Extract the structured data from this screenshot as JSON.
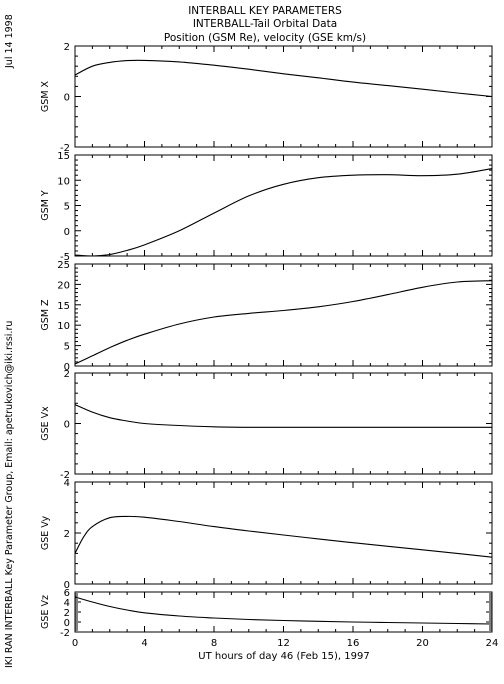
{
  "header": {
    "title": "INTERBALL KEY PARAMETERS",
    "subtitle": "INTERBALL-Tail Orbital Data",
    "units": "Position (GSM Re), velocity (GSE km/s)"
  },
  "side_text": {
    "date": "Jul 14 1998",
    "credit": "IKI RAN INTERBALL Key Parameter Group, Email: apetrukovich@iki.rssi.ru"
  },
  "chart_data": {
    "type": "line",
    "xlabel": "UT hours of day  46 (Feb 15), 1997",
    "xlim": [
      0,
      24
    ],
    "xticks": [
      "0",
      "4",
      "8",
      "12",
      "16",
      "20",
      "24"
    ],
    "panels": [
      {
        "name": "GSM X",
        "ylim": [
          -2,
          2
        ],
        "yticks": [
          "-2",
          "0",
          "2"
        ],
        "x": [
          0,
          1,
          2,
          3,
          4,
          6,
          8,
          10,
          12,
          14,
          16,
          18,
          20,
          22,
          24
        ],
        "y": [
          0.85,
          1.2,
          1.35,
          1.42,
          1.43,
          1.37,
          1.24,
          1.08,
          0.9,
          0.74,
          0.57,
          0.43,
          0.29,
          0.14,
          0.0
        ]
      },
      {
        "name": "GSM Y",
        "ylim": [
          -5,
          15
        ],
        "yticks": [
          "-5",
          "0",
          "5",
          "10",
          "15"
        ],
        "x": [
          0,
          1,
          2,
          3,
          4,
          6,
          8,
          10,
          12,
          14,
          16,
          18,
          20,
          22,
          24
        ],
        "y": [
          -4.8,
          -5.0,
          -4.7,
          -3.9,
          -2.8,
          0.0,
          3.5,
          6.9,
          9.2,
          10.5,
          11.0,
          11.1,
          10.9,
          11.2,
          12.3
        ]
      },
      {
        "name": "GSM Z",
        "ylim": [
          0,
          25
        ],
        "yticks": [
          "0",
          "5",
          "10",
          "15",
          "20",
          "25"
        ],
        "x": [
          0,
          1,
          2,
          3,
          4,
          6,
          8,
          10,
          12,
          14,
          16,
          18,
          20,
          22,
          24
        ],
        "y": [
          0.5,
          2.5,
          4.5,
          6.3,
          7.8,
          10.3,
          12.0,
          12.9,
          13.6,
          14.5,
          15.8,
          17.5,
          19.3,
          20.6,
          20.9
        ]
      },
      {
        "name": "GSE Vx",
        "ylim": [
          -2,
          2
        ],
        "yticks": [
          "-2",
          "0",
          "2"
        ],
        "x": [
          0,
          1,
          2,
          3,
          4,
          6,
          8,
          10,
          12,
          14,
          16,
          18,
          20,
          22,
          24
        ],
        "y": [
          0.75,
          0.45,
          0.23,
          0.1,
          0.0,
          -0.08,
          -0.13,
          -0.15,
          -0.15,
          -0.15,
          -0.15,
          -0.15,
          -0.15,
          -0.15,
          -0.15
        ]
      },
      {
        "name": "GSE Vy",
        "ylim": [
          0,
          4
        ],
        "yticks": [
          "0",
          "2",
          "4"
        ],
        "x": [
          0,
          0.5,
          1,
          2,
          3,
          4,
          6,
          8,
          10,
          12,
          14,
          16,
          18,
          20,
          22,
          24
        ],
        "y": [
          1.2,
          1.85,
          2.25,
          2.6,
          2.65,
          2.62,
          2.45,
          2.25,
          2.08,
          1.92,
          1.77,
          1.62,
          1.48,
          1.34,
          1.2,
          1.05
        ]
      },
      {
        "name": "GSE Vz",
        "ylim": [
          -2,
          6
        ],
        "yticks": [
          "-2",
          "0",
          "2",
          "4",
          "6"
        ],
        "x": [
          0,
          1,
          2,
          3,
          4,
          6,
          8,
          10,
          12,
          14,
          16,
          18,
          20,
          22,
          24
        ],
        "y": [
          5.0,
          4.0,
          3.1,
          2.4,
          1.85,
          1.2,
          0.8,
          0.5,
          0.3,
          0.15,
          0.0,
          -0.1,
          -0.2,
          -0.3,
          -0.4
        ]
      }
    ]
  }
}
